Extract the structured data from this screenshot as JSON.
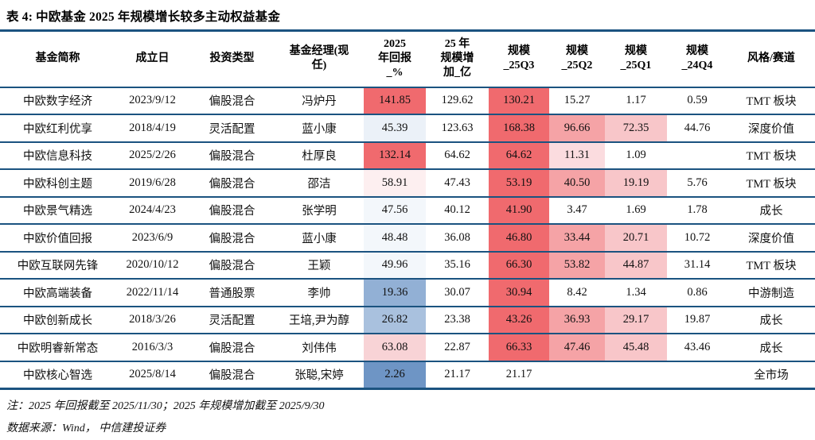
{
  "title": "表 4: 中欧基金 2025 年规模增长较多主动权益基金",
  "colors": {
    "line": "#1B5380",
    "palette": {
      "red": "#F06A6E",
      "pink": "#F5A3A6",
      "lpink": "#F8C6C9",
      "lpink2": "#F8D3D6",
      "ppink": "#FBDCDF",
      "xppink": "#FDEFF0",
      "pblue": "#F3F7FB",
      "pblue2": "#EBF1F8",
      "lblue": "#A9C1DE",
      "mblue": "#92B0D5",
      "blue": "#6E95C5"
    }
  },
  "table": {
    "col_keys": [
      "fund-name",
      "inception-date",
      "invest-type",
      "manager",
      "return-2025",
      "scale-increase-25",
      "scale-25q3",
      "scale-25q2",
      "scale-25q1",
      "scale-24q4",
      "style-track"
    ],
    "headers": [
      "基金简称",
      "成立日",
      "投资类型",
      "基金经理(现\n任)",
      "2025\n年回报\n_%",
      "25 年\n规模增\n加_亿",
      "规模\n_25Q3",
      "规模\n_25Q2",
      "规模\n_25Q1",
      "规模\n_24Q4",
      "风格/赛道"
    ],
    "rows": [
      {
        "cells": [
          "中欧数字经济",
          "2023/9/12",
          "偏股混合",
          "冯炉丹",
          "141.85",
          "129.62",
          "130.21",
          "15.27",
          "1.17",
          "0.59",
          "TMT 板块"
        ],
        "bg": [
          "",
          "",
          "",
          "",
          "red",
          "",
          "red",
          "",
          "",
          "",
          ""
        ]
      },
      {
        "cells": [
          "中欧红利优享",
          "2018/4/19",
          "灵活配置",
          "蓝小康",
          "45.39",
          "123.63",
          "168.38",
          "96.66",
          "72.35",
          "44.76",
          "深度价值"
        ],
        "bg": [
          "",
          "",
          "",
          "",
          "pblue2",
          "",
          "red",
          "pink",
          "lpink",
          "",
          ""
        ]
      },
      {
        "cells": [
          "中欧信息科技",
          "2025/2/26",
          "偏股混合",
          "杜厚良",
          "132.14",
          "64.62",
          "64.62",
          "11.31",
          "1.09",
          "",
          "TMT 板块"
        ],
        "bg": [
          "",
          "",
          "",
          "",
          "red",
          "",
          "red",
          "ppink",
          "",
          "",
          ""
        ]
      },
      {
        "cells": [
          "中欧科创主题",
          "2019/6/28",
          "偏股混合",
          "邵洁",
          "58.91",
          "47.43",
          "53.19",
          "40.50",
          "19.19",
          "5.76",
          "TMT 板块"
        ],
        "bg": [
          "",
          "",
          "",
          "",
          "xppink",
          "",
          "red",
          "pink",
          "lpink",
          "",
          ""
        ]
      },
      {
        "cells": [
          "中欧景气精选",
          "2024/4/23",
          "偏股混合",
          "张学明",
          "47.56",
          "40.12",
          "41.90",
          "3.47",
          "1.69",
          "1.78",
          "成长"
        ],
        "bg": [
          "",
          "",
          "",
          "",
          "pblue",
          "",
          "red",
          "",
          "",
          "",
          ""
        ]
      },
      {
        "cells": [
          "中欧价值回报",
          "2023/6/9",
          "偏股混合",
          "蓝小康",
          "48.48",
          "36.08",
          "46.80",
          "33.44",
          "20.71",
          "10.72",
          "深度价值"
        ],
        "bg": [
          "",
          "",
          "",
          "",
          "pblue",
          "",
          "red",
          "pink",
          "lpink",
          "",
          ""
        ]
      },
      {
        "cells": [
          "中欧互联网先锋",
          "2020/10/12",
          "偏股混合",
          "王颖",
          "49.96",
          "35.16",
          "66.30",
          "53.82",
          "44.87",
          "31.14",
          "TMT 板块"
        ],
        "bg": [
          "",
          "",
          "",
          "",
          "pblue",
          "",
          "red",
          "pink",
          "lpink",
          "",
          ""
        ]
      },
      {
        "cells": [
          "中欧高端装备",
          "2022/11/14",
          "普通股票",
          "李帅",
          "19.36",
          "30.07",
          "30.94",
          "8.42",
          "1.34",
          "0.86",
          "中游制造"
        ],
        "bg": [
          "",
          "",
          "",
          "",
          "mblue",
          "",
          "red",
          "",
          "",
          "",
          ""
        ]
      },
      {
        "cells": [
          "中欧创新成长",
          "2018/3/26",
          "灵活配置",
          "王培,尹为醇",
          "26.82",
          "23.38",
          "43.26",
          "36.93",
          "29.17",
          "19.87",
          "成长"
        ],
        "bg": [
          "",
          "",
          "",
          "",
          "lblue",
          "",
          "red",
          "pink",
          "lpink",
          "",
          ""
        ]
      },
      {
        "cells": [
          "中欧明睿新常态",
          "2016/3/3",
          "偏股混合",
          "刘伟伟",
          "63.08",
          "22.87",
          "66.33",
          "47.46",
          "45.48",
          "43.46",
          "成长"
        ],
        "bg": [
          "",
          "",
          "",
          "",
          "lpink2",
          "",
          "red",
          "pink",
          "lpink",
          "",
          ""
        ]
      },
      {
        "cells": [
          "中欧核心智选",
          "2025/8/14",
          "偏股混合",
          "张聪,宋婷",
          "2.26",
          "21.17",
          "21.17",
          "",
          "",
          "",
          "全市场"
        ],
        "bg": [
          "",
          "",
          "",
          "",
          "blue",
          "",
          "",
          "",
          "",
          "",
          ""
        ]
      }
    ]
  },
  "notes": {
    "note": "注：2025 年回报截至 2025/11/30；2025 年规模增加截至 2025/9/30",
    "source": "数据来源：Wind， 中信建投证券"
  }
}
